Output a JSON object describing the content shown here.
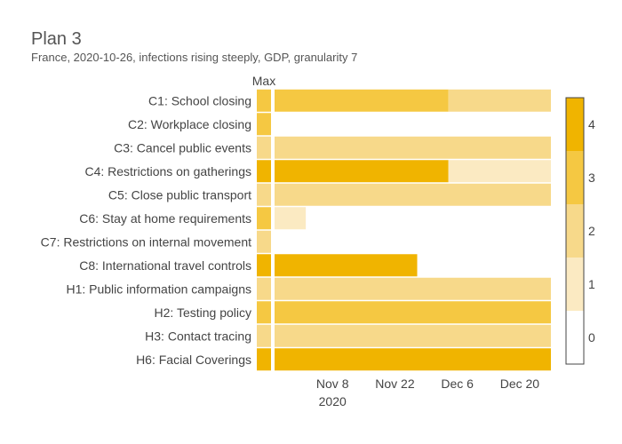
{
  "chart_data": {
    "type": "heatmap",
    "title": "Plan 3",
    "subtitle": "France, 2020-10-26, infections rising steeply, GDP, granularity 7",
    "max_column_label": "Max",
    "x_axis": {
      "start_date": "2020-10-26",
      "end_date": "2020-12-27",
      "ticks": [
        {
          "date": "2020-11-08",
          "label": "Nov 8",
          "sublabel": "2020"
        },
        {
          "date": "2020-11-22",
          "label": "Nov 22",
          "sublabel": ""
        },
        {
          "date": "2020-12-06",
          "label": "Dec 6",
          "sublabel": ""
        },
        {
          "date": "2020-12-20",
          "label": "Dec 20",
          "sublabel": ""
        }
      ]
    },
    "colorscale": {
      "range": [
        -0.5,
        4.5
      ],
      "ticks": [
        0,
        1,
        2,
        3,
        4
      ],
      "colors": [
        "#ffffff",
        "#fbeac2",
        "#f7d98a",
        "#f5c842",
        "#f0b400"
      ]
    },
    "rows": [
      {
        "label": "C1: School closing",
        "max": 3,
        "segments": [
          {
            "start": "2020-10-26",
            "end": "2020-12-04",
            "value": 3
          },
          {
            "start": "2020-12-04",
            "end": "2020-12-27",
            "value": 2
          }
        ]
      },
      {
        "label": "C2: Workplace closing",
        "max": 3,
        "segments": []
      },
      {
        "label": "C3: Cancel public events",
        "max": 2,
        "segments": [
          {
            "start": "2020-10-26",
            "end": "2020-12-27",
            "value": 2
          }
        ]
      },
      {
        "label": "C4: Restrictions on gatherings",
        "max": 4,
        "segments": [
          {
            "start": "2020-10-26",
            "end": "2020-12-04",
            "value": 4
          },
          {
            "start": "2020-12-04",
            "end": "2020-12-27",
            "value": 1
          }
        ]
      },
      {
        "label": "C5: Close public transport",
        "max": 2,
        "segments": [
          {
            "start": "2020-10-26",
            "end": "2020-12-27",
            "value": 2
          }
        ]
      },
      {
        "label": "C6: Stay at home requirements",
        "max": 3,
        "segments": [
          {
            "start": "2020-10-26",
            "end": "2020-11-02",
            "value": 1
          }
        ]
      },
      {
        "label": "C7: Restrictions on internal movement",
        "max": 2,
        "segments": []
      },
      {
        "label": "C8: International travel controls",
        "max": 4,
        "segments": [
          {
            "start": "2020-10-26",
            "end": "2020-11-27",
            "value": 4
          }
        ]
      },
      {
        "label": "H1: Public information campaigns",
        "max": 2,
        "segments": [
          {
            "start": "2020-10-26",
            "end": "2020-12-27",
            "value": 2
          }
        ]
      },
      {
        "label": "H2: Testing policy",
        "max": 3,
        "segments": [
          {
            "start": "2020-10-26",
            "end": "2020-12-27",
            "value": 3
          }
        ]
      },
      {
        "label": "H3: Contact tracing",
        "max": 2,
        "segments": [
          {
            "start": "2020-10-26",
            "end": "2020-12-27",
            "value": 2
          }
        ]
      },
      {
        "label": "H6: Facial Coverings",
        "max": 4,
        "segments": [
          {
            "start": "2020-10-26",
            "end": "2020-12-27",
            "value": 4
          }
        ]
      }
    ]
  }
}
